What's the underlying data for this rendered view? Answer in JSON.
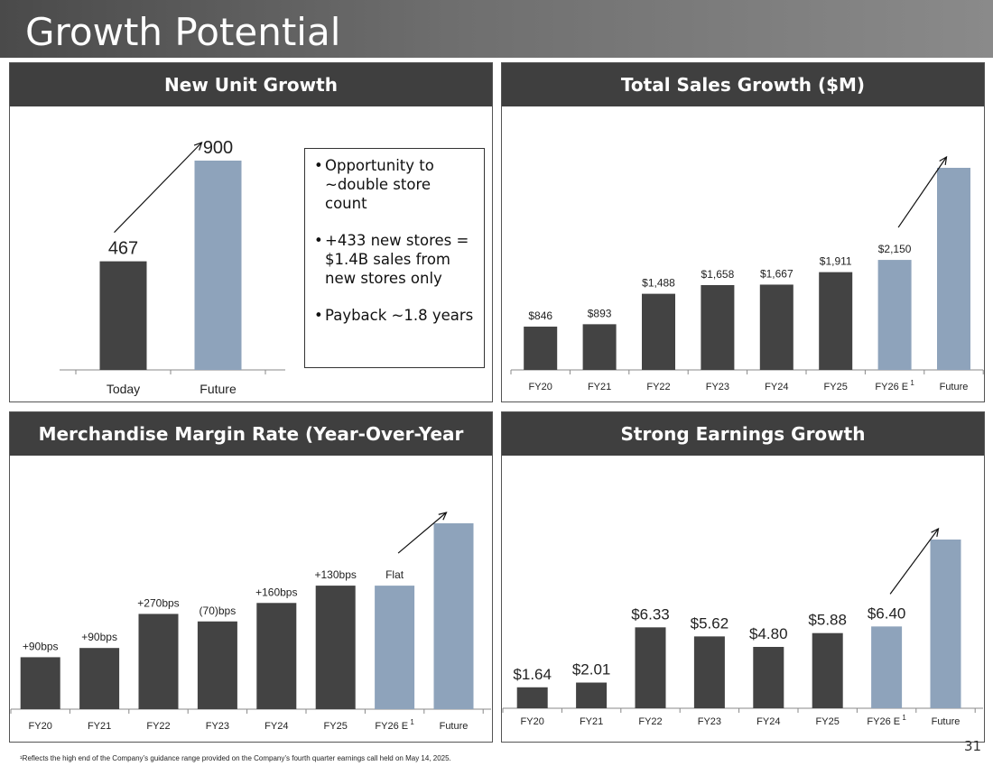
{
  "page": {
    "title": "Growth Potential",
    "footnote": "¹Reflects the high end of the Company’s guidance range provided on the Company’s fourth quarter earnings call held on May 14, 2025.",
    "page_number": "31"
  },
  "colors": {
    "dark_bar": "#434343",
    "light_bar": "#8ea3bb",
    "header": "#3f3f3f"
  },
  "bullets": [
    "Opportunity to ~double store count",
    "+433 new stores = $1.4B sales from new stores only",
    "Payback ~1.8 years"
  ],
  "chart_data": [
    {
      "type": "bar",
      "title": "New Unit Growth",
      "categories": [
        "Today",
        "Future"
      ],
      "values": [
        467,
        900
      ],
      "labels": [
        "467",
        "900"
      ],
      "highlight": [
        false,
        true
      ],
      "ylim": [
        0,
        1000
      ]
    },
    {
      "type": "bar",
      "title": "Total Sales Growth ($M)",
      "categories": [
        "FY20",
        "FY21",
        "FY22",
        "FY23",
        "FY24",
        "FY25",
        "FY26 E",
        "Future"
      ],
      "superscripts": [
        "",
        "",
        "",
        "",
        "",
        "",
        "1",
        ""
      ],
      "values": [
        846,
        893,
        1488,
        1658,
        1667,
        1911,
        2150,
        3950
      ],
      "labels": [
        "$846",
        "$893",
        "$1,488",
        "$1,658",
        "$1,667",
        "$1,911",
        "$2,150",
        ""
      ],
      "highlight": [
        false,
        false,
        false,
        false,
        false,
        false,
        true,
        true
      ],
      "ylim": [
        0,
        4500
      ]
    },
    {
      "type": "bar",
      "title": "Merchandise Margin Rate (Year-Over-Year Change)",
      "categories": [
        "FY20",
        "FY21",
        "FY22",
        "FY23",
        "FY24",
        "FY25",
        "FY26 E",
        "Future"
      ],
      "superscripts": [
        "",
        "",
        "",
        "",
        "",
        "",
        "1",
        ""
      ],
      "values": [
        90,
        106,
        165,
        152,
        184,
        214,
        214,
        322
      ],
      "labels": [
        "+90bps",
        "+90bps",
        "+270bps",
        "(70)bps",
        "+160bps",
        "+130bps",
        "Flat",
        ""
      ],
      "highlight": [
        false,
        false,
        false,
        false,
        false,
        false,
        true,
        true
      ],
      "ylim": [
        0,
        340
      ]
    },
    {
      "type": "bar",
      "title": "Strong Earnings Growth",
      "categories": [
        "FY20",
        "FY21",
        "FY22",
        "FY23",
        "FY24",
        "FY25",
        "FY26 E",
        "Future"
      ],
      "superscripts": [
        "",
        "",
        "",
        "",
        "",
        "",
        "1",
        ""
      ],
      "values": [
        1.64,
        2.01,
        6.33,
        5.62,
        4.8,
        5.88,
        6.4,
        13.2
      ],
      "labels": [
        "$1.64",
        "$2.01",
        "$6.33",
        "$5.62",
        "$4.80",
        "$5.88",
        "$6.40",
        ""
      ],
      "highlight": [
        false,
        false,
        false,
        false,
        false,
        false,
        true,
        true
      ],
      "ylim": [
        0,
        15
      ]
    }
  ]
}
